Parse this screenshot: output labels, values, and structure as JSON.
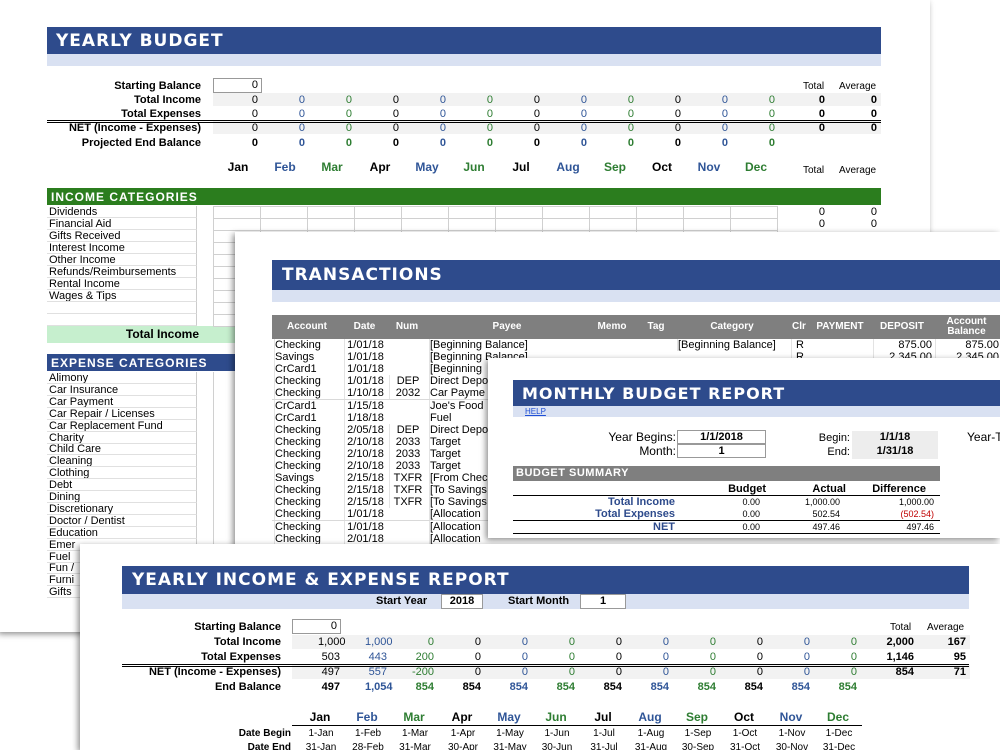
{
  "yearly_budget": {
    "title": "YEARLY BUDGET",
    "starting_balance_label": "Starting Balance",
    "starting_balance_value": "0",
    "col_total": "Total",
    "col_average": "Average",
    "rows": [
      {
        "label": "Total Income",
        "values": [
          "0",
          "0",
          "0",
          "0",
          "0",
          "0",
          "0",
          "0",
          "0",
          "0",
          "0",
          "0"
        ],
        "total": "0",
        "average": "0"
      },
      {
        "label": "Total Expenses",
        "values": [
          "0",
          "0",
          "0",
          "0",
          "0",
          "0",
          "0",
          "0",
          "0",
          "0",
          "0",
          "0"
        ],
        "total": "0",
        "average": "0"
      },
      {
        "label": "NET (Income - Expenses)",
        "values": [
          "0",
          "0",
          "0",
          "0",
          "0",
          "0",
          "0",
          "0",
          "0",
          "0",
          "0",
          "0"
        ],
        "total": "0",
        "average": "0"
      },
      {
        "label": "Projected End Balance",
        "values": [
          "0",
          "0",
          "0",
          "0",
          "0",
          "0",
          "0",
          "0",
          "0",
          "0",
          "0",
          "0"
        ],
        "total": "",
        "average": ""
      }
    ],
    "months": [
      "Jan",
      "Feb",
      "Mar",
      "Apr",
      "May",
      "Jun",
      "Jul",
      "Aug",
      "Sep",
      "Oct",
      "Nov",
      "Dec"
    ],
    "months_total": "Total",
    "months_average": "Average",
    "income_header": "INCOME CATEGORIES",
    "income_items": [
      "Dividends",
      "Financial Aid",
      "Gifts Received",
      "Interest Income",
      "Other Income",
      "Refunds/Reimbursements",
      "Rental Income",
      "Wages & Tips"
    ],
    "income_totals": [
      [
        "0",
        "0"
      ],
      [
        "0",
        "0"
      ]
    ],
    "total_income_label": "Total Income",
    "expense_header": "EXPENSE CATEGORIES",
    "expense_items": [
      "Alimony",
      "Car Insurance",
      "Car Payment",
      "Car Repair / Licenses",
      "Car Replacement Fund",
      "Charity",
      "Child Care",
      "Cleaning",
      "Clothing",
      "Debt",
      "Dining",
      "Discretionary",
      "Doctor / Dentist",
      "Education",
      "Emer",
      "Fuel",
      "Fun /",
      "Furni",
      "Gifts"
    ]
  },
  "transactions": {
    "title": "TRANSACTIONS",
    "headers": [
      "Account",
      "Date",
      "Num",
      "Payee",
      "Memo",
      "Tag",
      "Category",
      "Clr",
      "PAYMENT",
      "DEPOSIT",
      "Account Balance"
    ],
    "rows": [
      {
        "account": "Checking",
        "date": "1/01/18",
        "num": "",
        "payee": "[Beginning Balance]",
        "category": "[Beginning Balance]",
        "clr": "R",
        "payment": "",
        "deposit": "875.00",
        "balance": "875.00"
      },
      {
        "account": "Savings",
        "date": "1/01/18",
        "num": "",
        "payee": "[Beginning Balance]",
        "category": "",
        "clr": "R",
        "payment": "",
        "deposit": "2,345.00",
        "balance": "2,345.00"
      },
      {
        "account": "CrCard1",
        "date": "1/01/18",
        "num": "",
        "payee": "[Beginning",
        "category": "",
        "clr": "",
        "payment": "",
        "deposit": "",
        "balance": ""
      },
      {
        "account": "Checking",
        "date": "1/01/18",
        "num": "DEP",
        "payee": "Direct Depo",
        "category": "",
        "clr": "",
        "payment": "",
        "deposit": "",
        "balance": ""
      },
      {
        "account": "Checking",
        "date": "1/10/18",
        "num": "2032",
        "payee": "Car Payme",
        "category": "",
        "clr": "",
        "payment": "",
        "deposit": "",
        "balance": ""
      },
      {
        "account": "CrCard1",
        "date": "1/15/18",
        "num": "",
        "payee": "Joe's Food",
        "category": "",
        "clr": "",
        "payment": "",
        "deposit": "",
        "balance": ""
      },
      {
        "account": "CrCard1",
        "date": "1/18/18",
        "num": "",
        "payee": "Fuel",
        "category": "",
        "clr": "",
        "payment": "",
        "deposit": "",
        "balance": ""
      },
      {
        "account": "Checking",
        "date": "2/05/18",
        "num": "DEP",
        "payee": "Direct Depo",
        "category": "",
        "clr": "",
        "payment": "",
        "deposit": "",
        "balance": ""
      },
      {
        "account": "Checking",
        "date": "2/10/18",
        "num": "2033",
        "payee": "Target",
        "category": "",
        "clr": "",
        "payment": "",
        "deposit": "",
        "balance": ""
      },
      {
        "account": "Checking",
        "date": "2/10/18",
        "num": "2033",
        "payee": "Target",
        "category": "",
        "clr": "",
        "payment": "",
        "deposit": "",
        "balance": ""
      },
      {
        "account": "Checking",
        "date": "2/10/18",
        "num": "2033",
        "payee": "Target",
        "category": "",
        "clr": "",
        "payment": "",
        "deposit": "",
        "balance": ""
      },
      {
        "account": "Savings",
        "date": "2/15/18",
        "num": "TXFR",
        "payee": "[From Chec",
        "category": "",
        "clr": "",
        "payment": "",
        "deposit": "",
        "balance": ""
      },
      {
        "account": "Checking",
        "date": "2/15/18",
        "num": "TXFR",
        "payee": "[To Savings",
        "category": "",
        "clr": "",
        "payment": "",
        "deposit": "",
        "balance": ""
      },
      {
        "account": "Checking",
        "date": "2/15/18",
        "num": "TXFR",
        "payee": "[To Savings",
        "category": "",
        "clr": "",
        "payment": "",
        "deposit": "",
        "balance": ""
      },
      {
        "account": "Checking",
        "date": "1/01/18",
        "num": "",
        "payee": "[Allocation",
        "category": "",
        "clr": "",
        "payment": "",
        "deposit": "",
        "balance": ""
      },
      {
        "account": "Checking",
        "date": "1/01/18",
        "num": "",
        "payee": "[Allocation",
        "category": "",
        "clr": "",
        "payment": "",
        "deposit": "",
        "balance": ""
      },
      {
        "account": "Checking",
        "date": "2/01/18",
        "num": "",
        "payee": "[Allocation",
        "category": "",
        "clr": "",
        "payment": "",
        "deposit": "",
        "balance": ""
      }
    ]
  },
  "monthly_report": {
    "title": "MONTHLY BUDGET REPORT",
    "help": "HELP",
    "year_begins_label": "Year Begins:",
    "year_begins_value": "1/1/2018",
    "month_label": "Month:",
    "month_value": "1",
    "begin_label": "Begin:",
    "begin_value": "1/1/18",
    "end_label": "End:",
    "end_value": "1/31/18",
    "year_to_label": "Year-T",
    "summary_header": "BUDGET SUMMARY",
    "cols": [
      "Budget",
      "Actual",
      "Difference"
    ],
    "rows": [
      {
        "label": "Total Income",
        "budget": "0.00",
        "actual": "1,000.00",
        "difference": "1,000.00",
        "neg": false
      },
      {
        "label": "Total Expenses",
        "budget": "0.00",
        "actual": "502.54",
        "difference": "(502.54)",
        "neg": true
      },
      {
        "label": "NET",
        "budget": "0.00",
        "actual": "497.46",
        "difference": "497.46",
        "neg": false
      }
    ]
  },
  "ie_report": {
    "title": "YEARLY INCOME & EXPENSE REPORT",
    "start_year_label": "Start Year",
    "start_year_value": "2018",
    "start_month_label": "Start Month",
    "start_month_value": "1",
    "starting_balance_label": "Starting Balance",
    "starting_balance_value": "0",
    "col_total": "Total",
    "col_average": "Average",
    "rows": [
      {
        "label": "Total Income",
        "values": [
          "1,000",
          "1,000",
          "0",
          "0",
          "0",
          "0",
          "0",
          "0",
          "0",
          "0",
          "0",
          "0"
        ],
        "total": "2,000",
        "average": "167"
      },
      {
        "label": "Total Expenses",
        "values": [
          "503",
          "443",
          "200",
          "0",
          "0",
          "0",
          "0",
          "0",
          "0",
          "0",
          "0",
          "0"
        ],
        "total": "1,146",
        "average": "95"
      },
      {
        "label": "NET (Income - Expenses)",
        "values": [
          "497",
          "557",
          "-200",
          "0",
          "0",
          "0",
          "0",
          "0",
          "0",
          "0",
          "0",
          "0"
        ],
        "total": "854",
        "average": "71"
      },
      {
        "label": "End Balance",
        "values": [
          "497",
          "1,054",
          "854",
          "854",
          "854",
          "854",
          "854",
          "854",
          "854",
          "854",
          "854",
          "854"
        ],
        "total": "",
        "average": ""
      }
    ],
    "months": [
      "Jan",
      "Feb",
      "Mar",
      "Apr",
      "May",
      "Jun",
      "Jul",
      "Aug",
      "Sep",
      "Oct",
      "Nov",
      "Dec"
    ],
    "date_begin_label": "Date Begin",
    "date_begin": [
      "1-Jan",
      "1-Feb",
      "1-Mar",
      "1-Apr",
      "1-May",
      "1-Jun",
      "1-Jul",
      "1-Aug",
      "1-Sep",
      "1-Oct",
      "1-Nov",
      "1-Dec"
    ],
    "date_end_label": "Date End",
    "date_end": [
      "31-Jan",
      "28-Feb",
      "31-Mar",
      "30-Apr",
      "31-May",
      "30-Jun",
      "31-Jul",
      "31-Aug",
      "30-Sep",
      "31-Oct",
      "30-Nov",
      "31-Dec"
    ]
  },
  "colors": {
    "banner": "#2e4b8c",
    "sub_band": "#d9e1f2",
    "income_green": "#2b7d1e",
    "total_income_fill": "#c6efce",
    "expense_blue": "#2e4b8c",
    "grey_header": "#7f7f7f",
    "negative_red": "#c00000"
  }
}
